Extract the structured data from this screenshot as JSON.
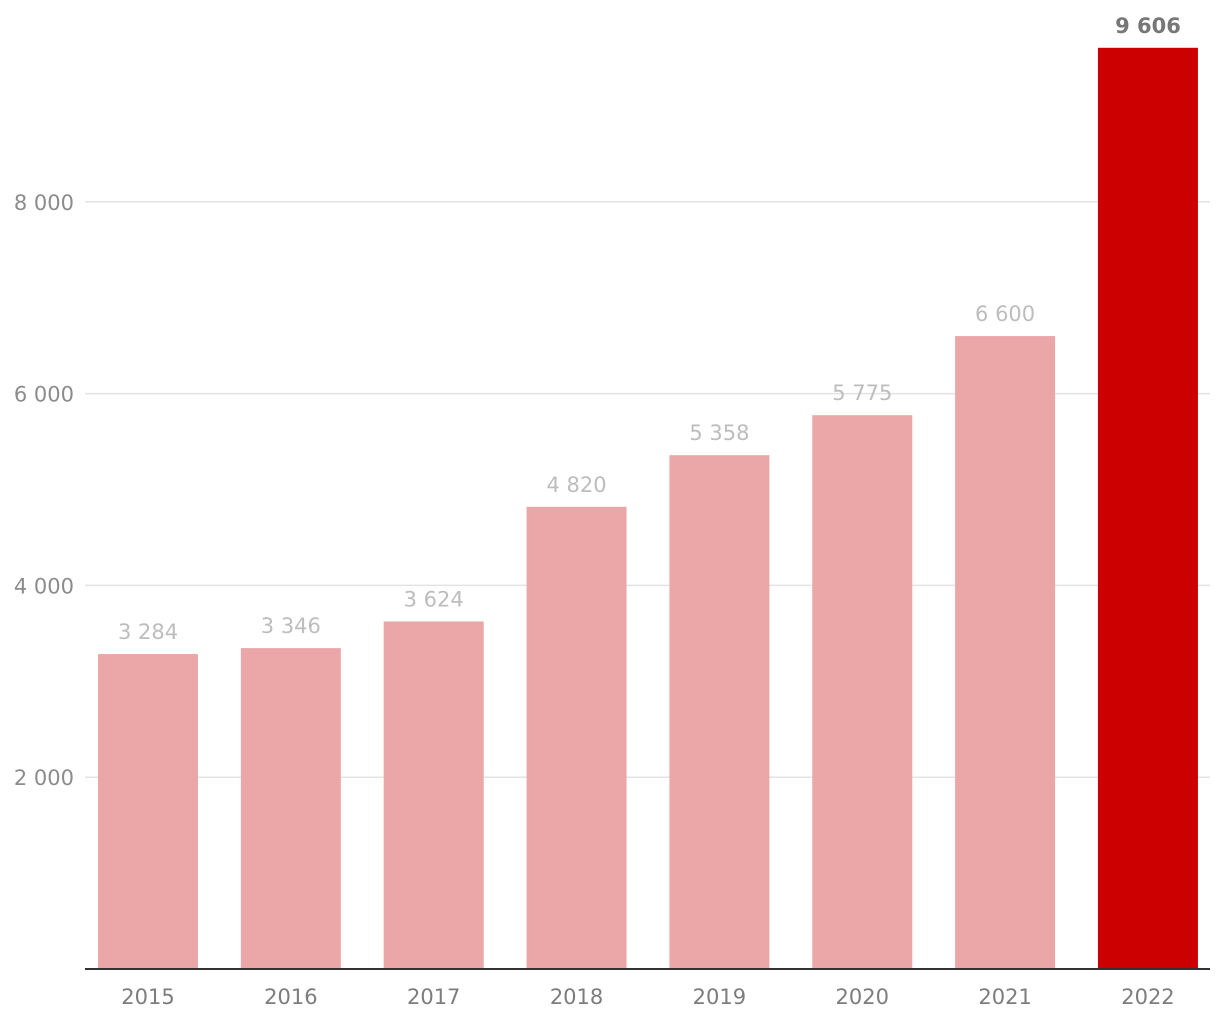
{
  "chart_data": {
    "type": "bar",
    "title": "",
    "xlabel": "",
    "ylabel": "",
    "categories": [
      "2015",
      "2016",
      "2017",
      "2018",
      "2019",
      "2020",
      "2021",
      "2022"
    ],
    "values": [
      3284,
      3346,
      3624,
      4820,
      5358,
      5775,
      6600,
      9606
    ],
    "value_labels": [
      "3 284",
      "3 346",
      "3 624",
      "4 820",
      "5 358",
      "5 775",
      "6 600",
      "9 606"
    ],
    "y_ticks": [
      2000,
      4000,
      6000,
      8000
    ],
    "y_tick_labels": [
      "2 000",
      "4 000",
      "6 000",
      "8 000"
    ],
    "ylim": [
      0,
      10000
    ],
    "grid": true,
    "highlight_index": 7,
    "colors": {
      "bar": "#eba6a7",
      "highlight_bar": "#cc0000"
    }
  }
}
